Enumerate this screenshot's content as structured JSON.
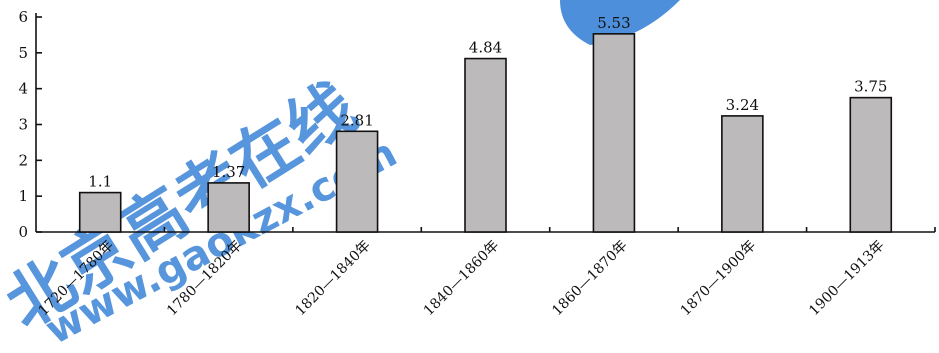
{
  "chart_data": {
    "type": "bar",
    "categories": [
      "1720—1780年",
      "1780—1820年",
      "1820—1840年",
      "1840—1860年",
      "1860—1870年",
      "1870—1900年",
      "1900—1913年"
    ],
    "values": [
      1.1,
      1.37,
      2.81,
      4.84,
      5.53,
      3.24,
      3.75
    ],
    "value_labels": [
      "1.1",
      "1.37",
      "2.81",
      "4.84",
      "5.53",
      "3.24",
      "3.75"
    ],
    "y_ticks": [
      "0",
      "1",
      "2",
      "3",
      "4",
      "5",
      "6"
    ],
    "ylim": [
      0,
      6
    ],
    "grid": false,
    "title": "",
    "xlabel": "",
    "ylabel": "",
    "colors": {
      "bar_fill": "#bdbabb",
      "bar_stroke": "#111111",
      "watermark": "#3a83d6"
    }
  },
  "watermark": {
    "text": "北京高考在线",
    "url_text": "www.gaokzx.com"
  }
}
